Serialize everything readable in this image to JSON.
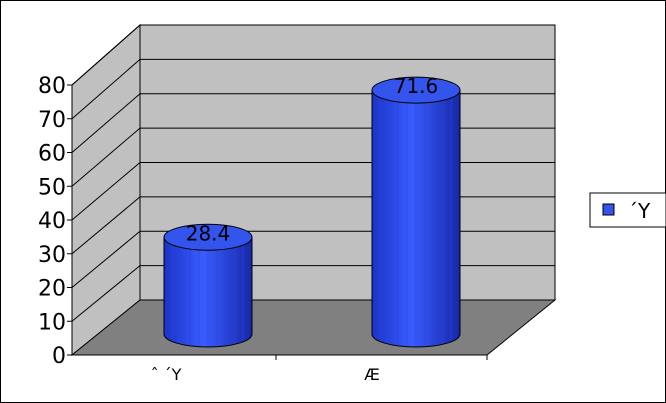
{
  "chart_data": {
    "type": "bar",
    "style": "3d-cylinder",
    "categories": [
      "ˆ ´Y",
      "Æ"
    ],
    "series": [
      {
        "name": "´Y",
        "values": [
          28.4,
          71.6
        ]
      }
    ],
    "ylim": [
      0,
      80
    ],
    "yticks": [
      "0",
      "10",
      "20",
      "30",
      "40",
      "50",
      "60",
      "70",
      "80"
    ],
    "data_labels": [
      "28.4",
      "71.6"
    ],
    "grid": true,
    "legend_position": "right",
    "colors": {
      "bar": "#3355EE",
      "bar_dark": "#1a2fb8",
      "bar_light": "#5f7dff",
      "wall": "#C0C0C0",
      "floor": "#808080"
    }
  }
}
